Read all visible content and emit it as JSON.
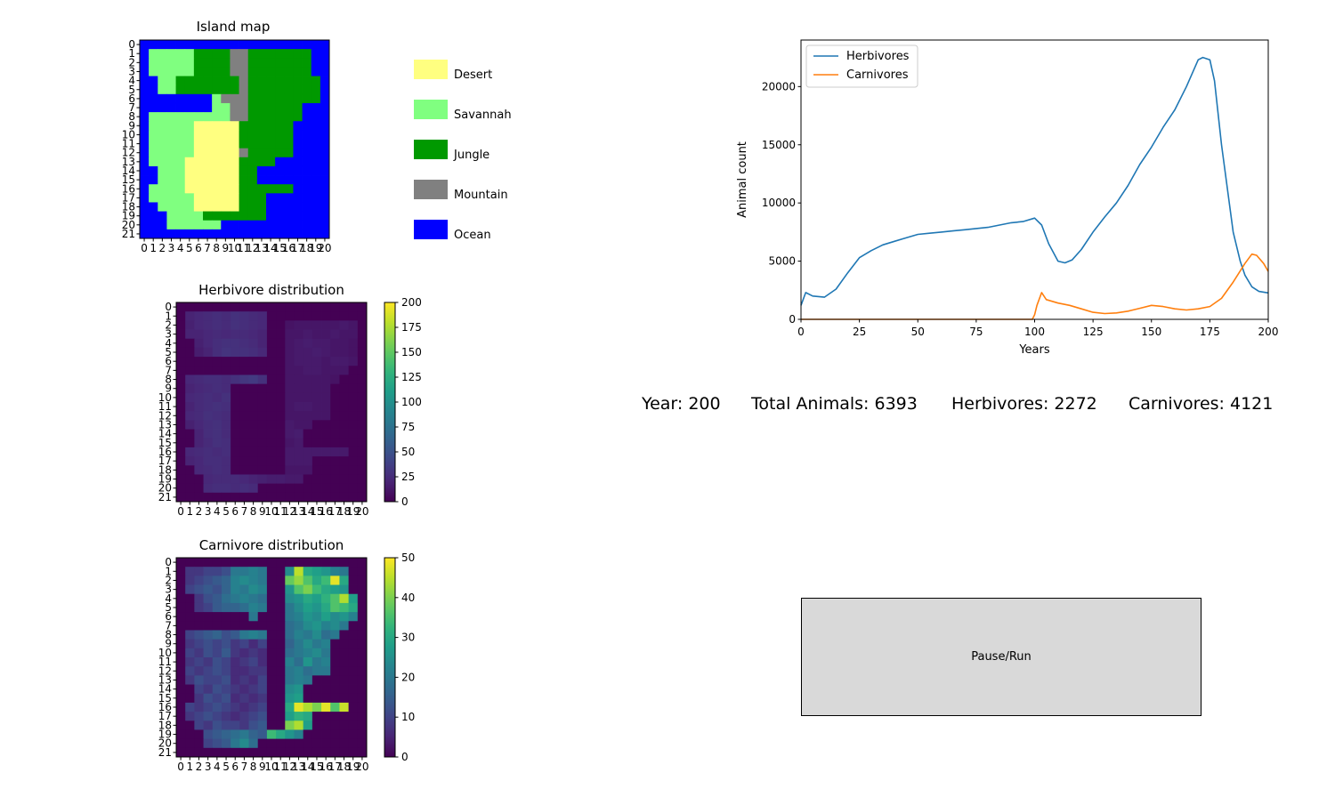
{
  "island_map": {
    "title": "Island map",
    "rows": [
      "OOOOOOOOOOOOOOOOOOOOO",
      "OSSSSSJJJJMMJJJJJJJOO",
      "OSSSSSJJJJMMJJJJJJJOO",
      "OSSSSSJJJJMMJJJJJJJOO",
      "OOSSJJJJJJJMJJJJJJJJO",
      "OOSSJJJJJJJMJJJJJJJJO",
      "OOOOOOOOSMMMJJJJJJJJO",
      "OOOOOOOOSSMMJJJJJJOOO",
      "OSSSSSSSSSMMJJJJJJOOO",
      "OSSSSSDDDDDJJJJJJOOOO",
      "OSSSSSDDDDDJJJJJJOOOO",
      "OSSSSSDDDDDJJJJJJOOOO",
      "OSSSSSDDDDDMJJJJJOOOO",
      "OSSSSDDDDDDJJJJOOOOOO",
      "OOSSSDDDDDDJJOOOOOOOO",
      "OOSSSDDDDDDJJOOOOOOOO",
      "OSSSSDDDDDDJJJJJJOOOO",
      "OSSSSSDDDDDJJJOOOOOOO",
      "OOSSSSDDDDDJJJOOOOOOO",
      "OOOSSSSJJJJJJJOOOOOOO",
      "OOOSSSSSSOOOOOOOOOOOO",
      "OOOOOOOOOOOOOOOOOOOOO"
    ],
    "x_ticks": [
      "0",
      "1",
      "2",
      "3",
      "4",
      "5",
      "6",
      "7",
      "8",
      "9",
      "10",
      "11",
      "12",
      "13",
      "14",
      "15",
      "16",
      "17",
      "18",
      "19",
      "20"
    ],
    "y_ticks": [
      "0",
      "1",
      "2",
      "3",
      "4",
      "5",
      "6",
      "7",
      "8",
      "9",
      "10",
      "11",
      "12",
      "13",
      "14",
      "15",
      "16",
      "17",
      "18",
      "19",
      "20",
      "21"
    ]
  },
  "terrain_legend": [
    {
      "code": "D",
      "label": "Desert",
      "color": "#ffff80"
    },
    {
      "code": "S",
      "label": "Savannah",
      "color": "#80ff80"
    },
    {
      "code": "J",
      "label": "Jungle",
      "color": "#009900"
    },
    {
      "code": "M",
      "label": "Mountain",
      "color": "#808080"
    },
    {
      "code": "O",
      "label": "Ocean",
      "color": "#0000ff"
    }
  ],
  "herbivore_map": {
    "title": "Herbivore distribution",
    "vmax": 200,
    "colorbar_ticks": [
      "0",
      "25",
      "50",
      "75",
      "100",
      "125",
      "150",
      "175",
      "200"
    ],
    "rows": [
      [
        0,
        0,
        0,
        0,
        0,
        0,
        0,
        0,
        0,
        0,
        0,
        0,
        0,
        0,
        0,
        0,
        0,
        0,
        0,
        0,
        0
      ],
      [
        0,
        20,
        22,
        24,
        26,
        24,
        28,
        26,
        24,
        22,
        0,
        0,
        0,
        0,
        0,
        0,
        0,
        0,
        0,
        0,
        0
      ],
      [
        0,
        18,
        22,
        24,
        26,
        24,
        28,
        26,
        24,
        22,
        0,
        0,
        10,
        12,
        12,
        12,
        12,
        12,
        14,
        12,
        0
      ],
      [
        0,
        20,
        20,
        22,
        24,
        22,
        24,
        24,
        22,
        20,
        0,
        0,
        12,
        12,
        14,
        12,
        12,
        14,
        12,
        12,
        0
      ],
      [
        0,
        0,
        18,
        22,
        26,
        28,
        28,
        26,
        24,
        20,
        0,
        0,
        12,
        14,
        16,
        14,
        14,
        12,
        12,
        10,
        0
      ],
      [
        0,
        0,
        16,
        20,
        26,
        30,
        28,
        28,
        26,
        22,
        0,
        0,
        12,
        14,
        14,
        16,
        14,
        12,
        12,
        10,
        0
      ],
      [
        0,
        0,
        0,
        0,
        0,
        0,
        0,
        0,
        0,
        0,
        0,
        0,
        12,
        14,
        14,
        14,
        12,
        14,
        14,
        12,
        0
      ],
      [
        0,
        0,
        0,
        0,
        0,
        0,
        0,
        0,
        0,
        0,
        0,
        0,
        12,
        12,
        14,
        14,
        12,
        12,
        12,
        0,
        0
      ],
      [
        0,
        22,
        24,
        26,
        26,
        24,
        28,
        32,
        34,
        28,
        0,
        0,
        12,
        12,
        12,
        12,
        12,
        10,
        0,
        0,
        0
      ],
      [
        0,
        20,
        22,
        24,
        26,
        24,
        0,
        0,
        0,
        0,
        0,
        0,
        12,
        12,
        12,
        12,
        12,
        0,
        0,
        0,
        0
      ],
      [
        0,
        22,
        24,
        26,
        24,
        28,
        0,
        0,
        0,
        0,
        0,
        0,
        12,
        12,
        12,
        12,
        12,
        0,
        0,
        0,
        0
      ],
      [
        0,
        20,
        24,
        26,
        28,
        26,
        0,
        0,
        0,
        0,
        0,
        0,
        12,
        14,
        14,
        12,
        12,
        0,
        0,
        0,
        0
      ],
      [
        0,
        22,
        24,
        28,
        26,
        24,
        0,
        0,
        0,
        0,
        0,
        0,
        12,
        12,
        12,
        12,
        12,
        0,
        0,
        0,
        0
      ],
      [
        0,
        18,
        22,
        26,
        28,
        24,
        0,
        0,
        0,
        0,
        0,
        0,
        14,
        12,
        12,
        0,
        0,
        0,
        0,
        0,
        0
      ],
      [
        0,
        0,
        20,
        26,
        28,
        24,
        0,
        0,
        0,
        0,
        0,
        0,
        14,
        16,
        0,
        0,
        0,
        0,
        0,
        0,
        0
      ],
      [
        0,
        0,
        20,
        24,
        28,
        26,
        0,
        0,
        0,
        0,
        0,
        0,
        12,
        14,
        0,
        0,
        0,
        0,
        0,
        0,
        0
      ],
      [
        0,
        22,
        24,
        26,
        24,
        26,
        0,
        0,
        0,
        0,
        0,
        0,
        14,
        14,
        14,
        14,
        14,
        14,
        14,
        0,
        0
      ],
      [
        0,
        20,
        22,
        26,
        26,
        24,
        0,
        0,
        0,
        0,
        0,
        0,
        14,
        14,
        14,
        0,
        0,
        0,
        0,
        0,
        0
      ],
      [
        0,
        0,
        22,
        24,
        26,
        24,
        0,
        0,
        0,
        0,
        0,
        0,
        12,
        12,
        12,
        0,
        0,
        0,
        0,
        0,
        0
      ],
      [
        0,
        0,
        0,
        22,
        24,
        24,
        24,
        22,
        20,
        18,
        16,
        16,
        14,
        14,
        0,
        0,
        0,
        0,
        0,
        0,
        0
      ],
      [
        0,
        0,
        0,
        24,
        26,
        26,
        24,
        26,
        24,
        0,
        0,
        0,
        0,
        0,
        0,
        0,
        0,
        0,
        0,
        0,
        0
      ],
      [
        0,
        0,
        0,
        0,
        0,
        0,
        0,
        0,
        0,
        0,
        0,
        0,
        0,
        0,
        0,
        0,
        0,
        0,
        0,
        0,
        0
      ]
    ]
  },
  "carnivore_map": {
    "title": "Carnivore distribution",
    "vmax": 50,
    "colorbar_ticks": [
      "0",
      "10",
      "20",
      "30",
      "40",
      "50"
    ],
    "rows": [
      [
        0,
        0,
        0,
        0,
        0,
        0,
        0,
        0,
        0,
        0,
        0,
        0,
        0,
        0,
        0,
        0,
        0,
        0,
        0,
        0,
        0
      ],
      [
        0,
        8,
        8,
        10,
        10,
        12,
        20,
        20,
        22,
        20,
        0,
        0,
        24,
        45,
        30,
        28,
        26,
        22,
        20,
        0,
        0
      ],
      [
        0,
        8,
        10,
        12,
        14,
        16,
        22,
        24,
        22,
        20,
        0,
        0,
        38,
        42,
        36,
        30,
        34,
        48,
        30,
        0,
        0
      ],
      [
        0,
        10,
        12,
        14,
        12,
        16,
        22,
        20,
        24,
        22,
        0,
        0,
        26,
        36,
        40,
        34,
        30,
        28,
        26,
        0,
        0
      ],
      [
        0,
        0,
        8,
        12,
        14,
        18,
        20,
        22,
        20,
        18,
        0,
        0,
        24,
        26,
        30,
        28,
        32,
        36,
        44,
        28,
        0
      ],
      [
        0,
        0,
        8,
        10,
        14,
        16,
        16,
        18,
        22,
        20,
        0,
        0,
        20,
        24,
        28,
        26,
        30,
        36,
        34,
        30,
        0
      ],
      [
        0,
        0,
        0,
        0,
        0,
        0,
        0,
        0,
        20,
        0,
        0,
        0,
        20,
        22,
        26,
        24,
        28,
        24,
        26,
        22,
        0
      ],
      [
        0,
        0,
        0,
        0,
        0,
        0,
        0,
        0,
        0,
        0,
        0,
        0,
        18,
        20,
        24,
        26,
        22,
        24,
        20,
        0,
        0
      ],
      [
        0,
        10,
        12,
        14,
        16,
        12,
        14,
        20,
        22,
        20,
        0,
        0,
        18,
        22,
        20,
        24,
        18,
        20,
        0,
        0,
        0
      ],
      [
        0,
        8,
        10,
        12,
        10,
        12,
        8,
        10,
        6,
        10,
        0,
        0,
        16,
        20,
        24,
        20,
        22,
        0,
        0,
        0,
        0
      ],
      [
        0,
        10,
        8,
        12,
        10,
        14,
        8,
        6,
        8,
        6,
        0,
        0,
        18,
        20,
        22,
        24,
        20,
        0,
        0,
        0,
        0
      ],
      [
        0,
        8,
        10,
        8,
        12,
        10,
        6,
        8,
        10,
        6,
        0,
        0,
        22,
        18,
        26,
        20,
        22,
        0,
        0,
        0,
        0
      ],
      [
        0,
        10,
        8,
        10,
        12,
        10,
        6,
        6,
        8,
        8,
        0,
        0,
        20,
        22,
        18,
        20,
        20,
        0,
        0,
        0,
        0
      ],
      [
        0,
        8,
        12,
        10,
        10,
        12,
        6,
        8,
        6,
        10,
        0,
        0,
        20,
        22,
        20,
        0,
        0,
        0,
        0,
        0,
        0
      ],
      [
        0,
        0,
        10,
        8,
        12,
        10,
        8,
        6,
        8,
        10,
        0,
        0,
        24,
        26,
        0,
        0,
        0,
        0,
        0,
        0,
        0
      ],
      [
        0,
        0,
        8,
        12,
        10,
        12,
        6,
        8,
        6,
        8,
        0,
        0,
        26,
        28,
        0,
        0,
        0,
        0,
        0,
        0,
        0
      ],
      [
        0,
        10,
        8,
        10,
        12,
        10,
        8,
        6,
        8,
        10,
        0,
        0,
        30,
        48,
        44,
        40,
        48,
        36,
        46,
        0,
        0
      ],
      [
        0,
        8,
        10,
        12,
        10,
        8,
        6,
        8,
        10,
        12,
        0,
        0,
        28,
        32,
        30,
        0,
        0,
        0,
        0,
        0,
        0
      ],
      [
        0,
        0,
        10,
        8,
        12,
        10,
        10,
        8,
        12,
        14,
        0,
        0,
        40,
        44,
        28,
        0,
        0,
        0,
        0,
        0,
        0
      ],
      [
        0,
        0,
        0,
        12,
        14,
        16,
        18,
        20,
        16,
        14,
        34,
        30,
        26,
        22,
        0,
        0,
        0,
        0,
        0,
        0,
        0
      ],
      [
        0,
        0,
        0,
        10,
        12,
        14,
        20,
        24,
        18,
        0,
        0,
        0,
        0,
        0,
        0,
        0,
        0,
        0,
        0,
        0,
        0
      ],
      [
        0,
        0,
        0,
        0,
        0,
        0,
        0,
        0,
        0,
        0,
        0,
        0,
        0,
        0,
        0,
        0,
        0,
        0,
        0,
        0,
        0
      ]
    ]
  },
  "chart_data": {
    "type": "line",
    "title": "",
    "xlabel": "Years",
    "ylabel": "Animal count",
    "xlim": [
      0,
      200
    ],
    "ylim": [
      0,
      24000
    ],
    "x_ticks": [
      0,
      25,
      50,
      75,
      100,
      125,
      150,
      175,
      200
    ],
    "y_ticks": [
      0,
      5000,
      10000,
      15000,
      20000
    ],
    "legend_position": "top-left",
    "series": [
      {
        "name": "Herbivores",
        "color": "#1f77b4",
        "x": [
          0,
          2,
          5,
          10,
          15,
          20,
          25,
          30,
          35,
          40,
          45,
          50,
          55,
          60,
          65,
          70,
          75,
          80,
          85,
          90,
          95,
          100,
          103,
          106,
          110,
          113,
          116,
          120,
          125,
          130,
          135,
          140,
          145,
          150,
          155,
          160,
          165,
          170,
          172,
          175,
          177,
          180,
          185,
          188,
          190,
          193,
          196,
          200
        ],
        "y": [
          1200,
          2300,
          2000,
          1900,
          2600,
          4000,
          5300,
          5900,
          6400,
          6700,
          7000,
          7300,
          7400,
          7500,
          7600,
          7700,
          7800,
          7900,
          8100,
          8300,
          8400,
          8700,
          8100,
          6500,
          5000,
          4850,
          5100,
          6000,
          7500,
          8800,
          10000,
          11500,
          13300,
          14800,
          16500,
          18000,
          20000,
          22300,
          22500,
          22300,
          20500,
          15000,
          7500,
          5000,
          3800,
          2800,
          2400,
          2272
        ]
      },
      {
        "name": "Carnivores",
        "color": "#ff7f0e",
        "x": [
          0,
          50,
          99,
          100,
          101,
          103,
          105,
          110,
          115,
          120,
          125,
          130,
          135,
          140,
          145,
          150,
          155,
          160,
          165,
          170,
          175,
          180,
          185,
          190,
          193,
          195,
          198,
          200
        ],
        "y": [
          0,
          0,
          0,
          400,
          1200,
          2300,
          1700,
          1400,
          1200,
          900,
          600,
          500,
          550,
          700,
          950,
          1200,
          1100,
          900,
          800,
          900,
          1100,
          1800,
          3200,
          4800,
          5600,
          5500,
          4800,
          4121
        ]
      }
    ]
  },
  "status": {
    "year_label": "Year: 200",
    "total_label": "Total Animals: 6393",
    "herbivores_label": "Herbivores: 2272",
    "carnivores_label": "Carnivores: 4121"
  },
  "controls": {
    "pause_run_label": "Pause/Run"
  }
}
